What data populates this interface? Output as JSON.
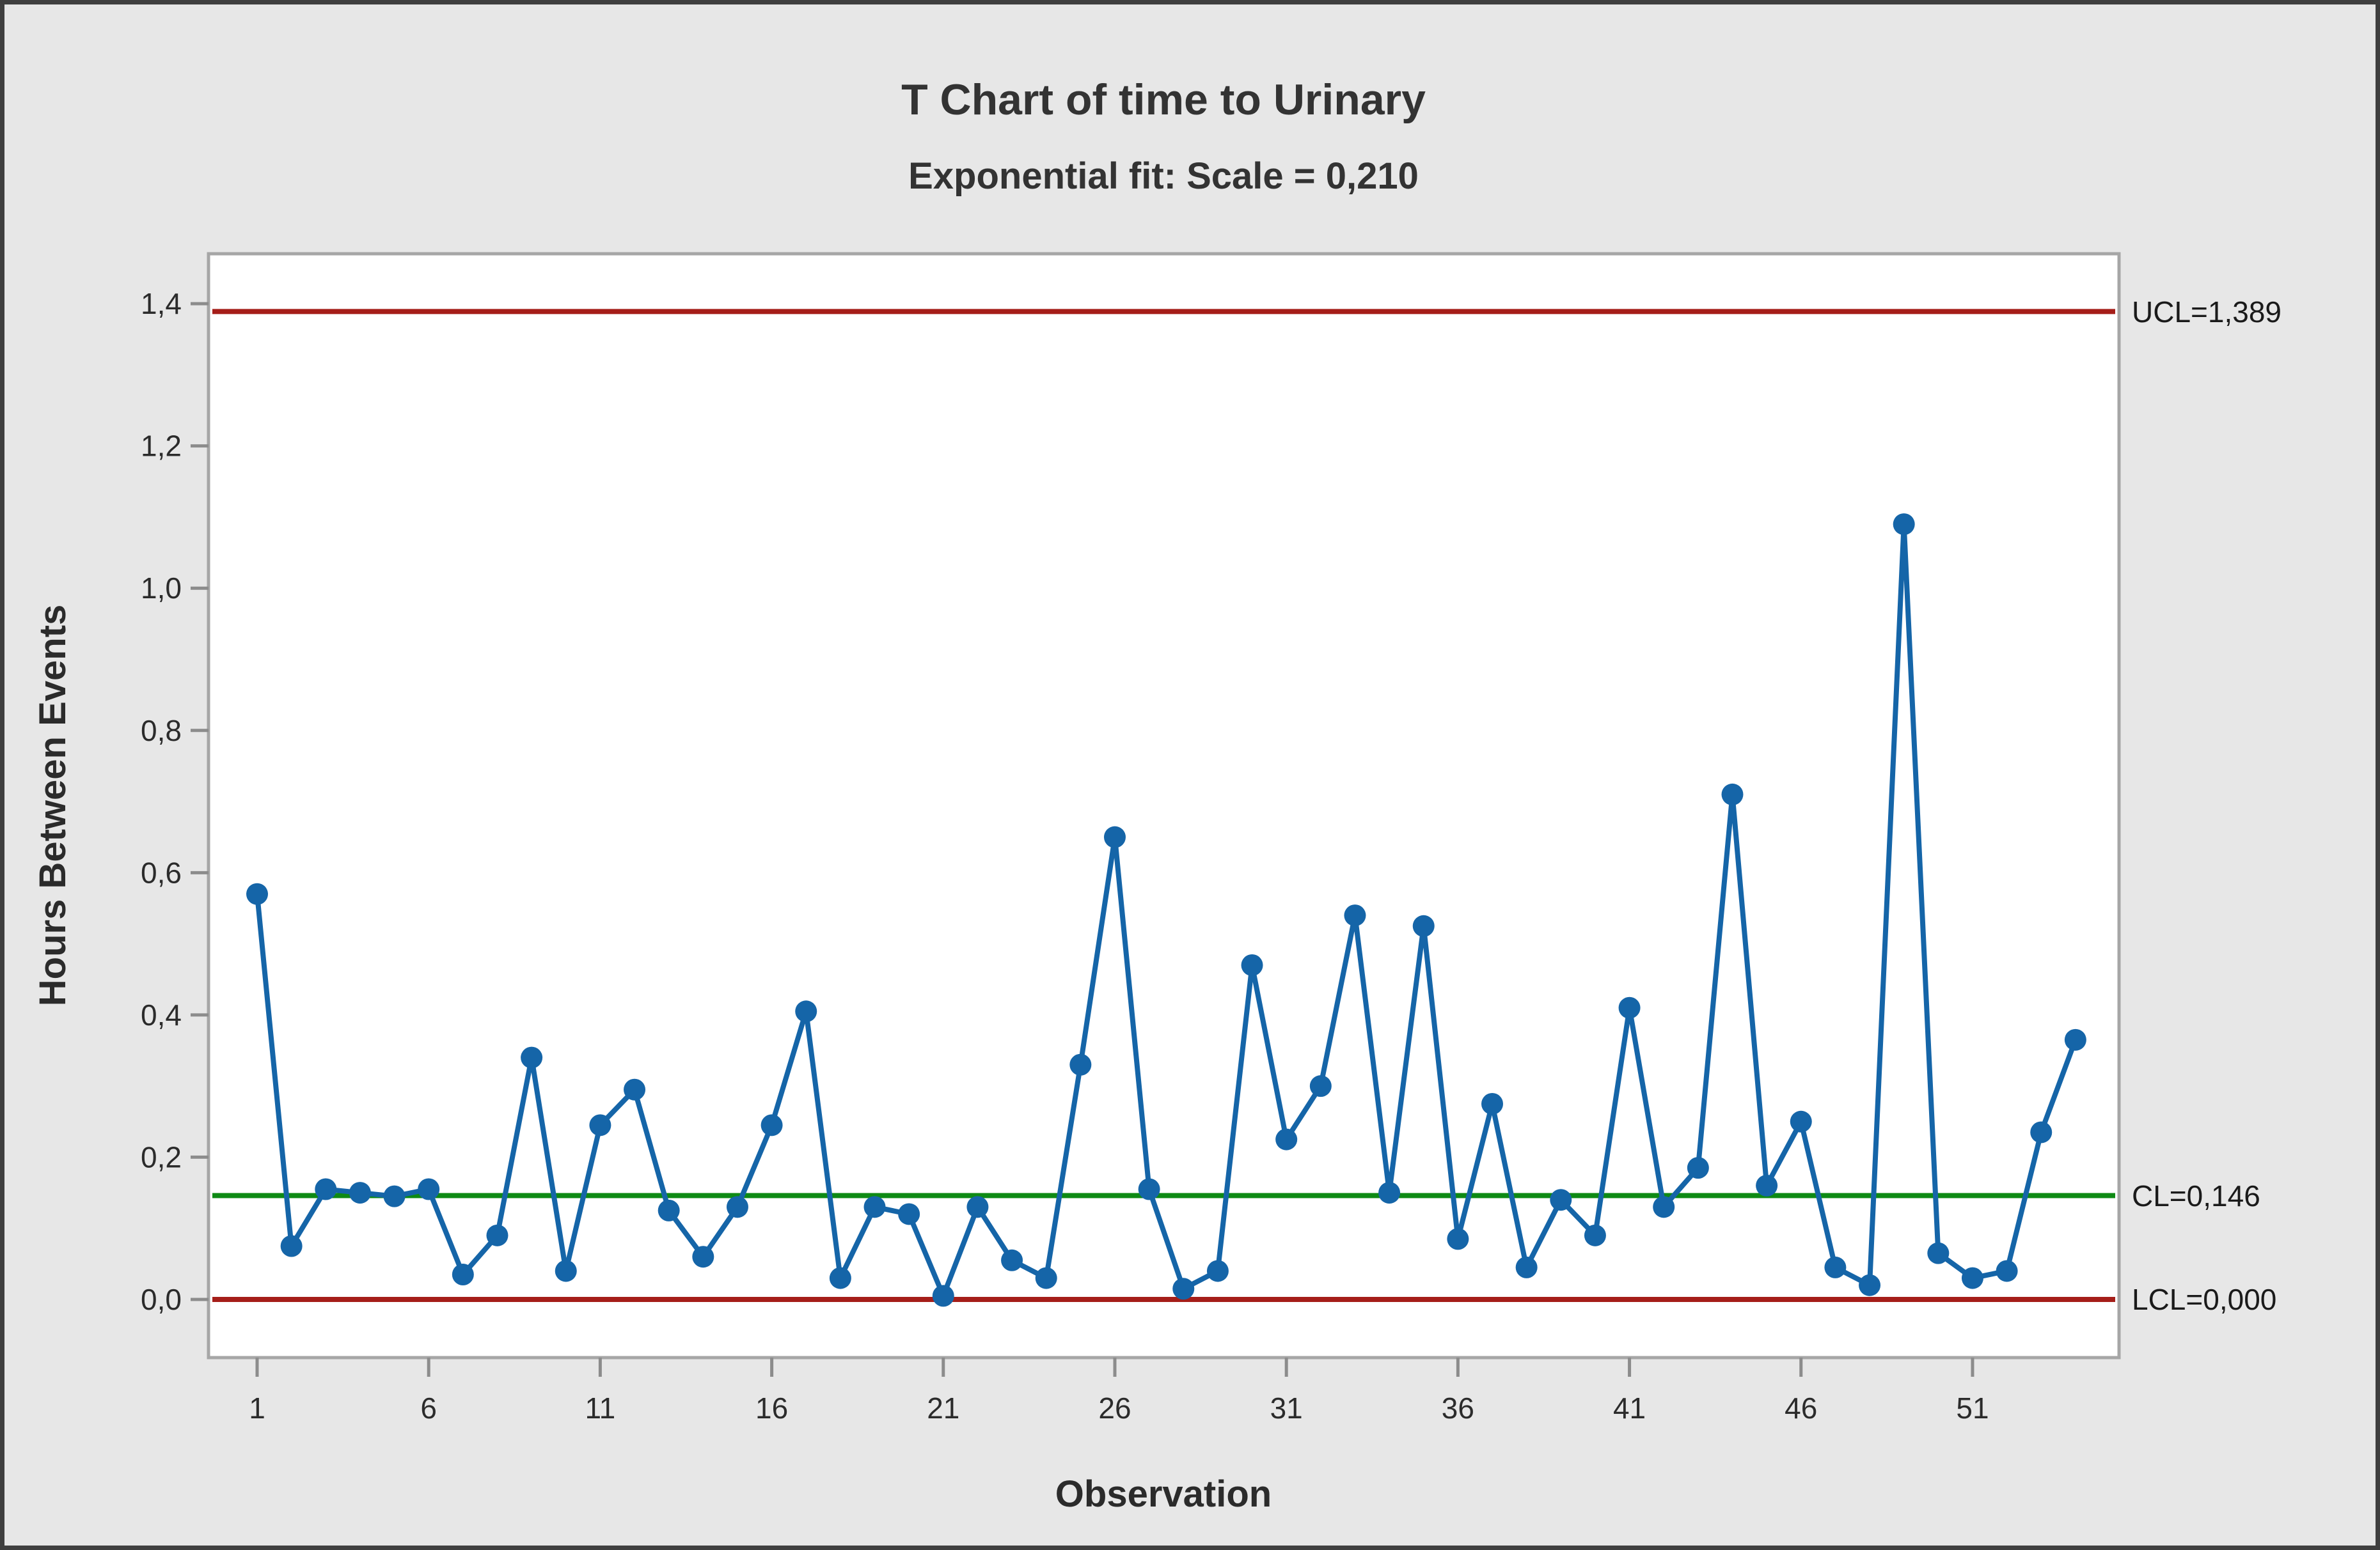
{
  "title": "T Chart of time to Urinary",
  "subtitle": "Exponential fit: Scale = 0,210",
  "annotations": {
    "ucl_label": "UCL=1,389",
    "cl_label": "CL=0,146",
    "lcl_label": "LCL=0,000"
  },
  "colors": {
    "figure_background": "#e7e7e7",
    "plot_background": "#ffffff",
    "plot_border": "#a6a6a6",
    "tick": "#8c8c8c",
    "series_blue": "#1565a8",
    "limit_red": "#a51e19",
    "center_green": "#0e8a14",
    "text": "#1a1a1a"
  },
  "chart_data": {
    "type": "line",
    "title": "T Chart of time to Urinary",
    "subtitle": "Exponential fit: Scale = 0,210",
    "xlabel": "Observation",
    "ylabel": "Hours Between Events",
    "legend": "none",
    "grid": false,
    "marker": "circle",
    "x": [
      1,
      2,
      3,
      4,
      5,
      6,
      7,
      8,
      9,
      10,
      11,
      12,
      13,
      14,
      15,
      16,
      17,
      18,
      19,
      20,
      21,
      22,
      23,
      24,
      25,
      26,
      27,
      28,
      29,
      30,
      31,
      32,
      33,
      34,
      35,
      36,
      37,
      38,
      39,
      40,
      41,
      42,
      43,
      44,
      45,
      46,
      47,
      48,
      49,
      50,
      51,
      52,
      53,
      54
    ],
    "values": [
      0.57,
      0.075,
      0.155,
      0.15,
      0.145,
      0.155,
      0.035,
      0.09,
      0.34,
      0.04,
      0.245,
      0.295,
      0.125,
      0.06,
      0.13,
      0.245,
      0.405,
      0.03,
      0.13,
      0.12,
      0.005,
      0.13,
      0.055,
      0.03,
      0.33,
      0.65,
      0.155,
      0.015,
      0.04,
      0.47,
      0.225,
      0.3,
      0.54,
      0.15,
      0.525,
      0.085,
      0.275,
      0.045,
      0.14,
      0.09,
      0.41,
      0.13,
      0.185,
      0.71,
      0.16,
      0.25,
      0.045,
      0.02,
      1.09,
      0.065,
      0.03,
      0.04,
      0.235,
      0.365
    ],
    "control_lines": {
      "ucl": 1.389,
      "cl": 0.146,
      "lcl": 0.0
    },
    "yticks": {
      "values": [
        0.0,
        0.2,
        0.4,
        0.6,
        0.8,
        1.0,
        1.2,
        1.4
      ],
      "labels": [
        "0,0",
        "0,2",
        "0,4",
        "0,6",
        "0,8",
        "1,0",
        "1,2",
        "1,4"
      ]
    },
    "xticks": {
      "values": [
        1,
        6,
        11,
        16,
        21,
        26,
        31,
        36,
        41,
        46,
        51
      ],
      "labels": [
        "1",
        "6",
        "11",
        "16",
        "21",
        "26",
        "31",
        "36",
        "41",
        "46",
        "51"
      ]
    },
    "ylim": [
      -0.0818,
      1.4702
    ],
    "xlim": [
      -0.417,
      55.27
    ]
  }
}
